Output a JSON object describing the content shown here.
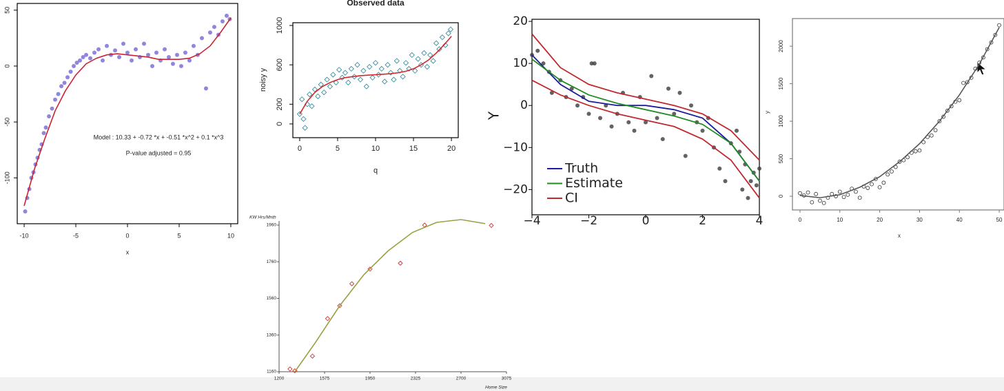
{
  "chart_data": [
    {
      "type": "scatter",
      "xlabel": "x",
      "annotations": [
        "Model :  10.33  +  -0.72 *x + -0.51 *x^2 + 0.1 *x^3",
        "P-value adjusted =  0.95"
      ],
      "xlim": [
        -10.67,
        10.67
      ],
      "ylim": [
        -141,
        56
      ],
      "xticks": [
        -10,
        -5,
        0,
        5,
        10
      ],
      "yticks": [
        -100,
        -50,
        0,
        50
      ],
      "marker": "circle",
      "color": "#7468d2",
      "x": [
        -9.9,
        -9.7,
        -9.5,
        -9.3,
        -9.1,
        -8.9,
        -8.7,
        -8.5,
        -8.3,
        -8.1,
        -7.9,
        -7.6,
        -7.3,
        -7,
        -6.7,
        -6.4,
        -6.1,
        -5.8,
        -5.5,
        -5.2,
        -4.9,
        -4.6,
        -4.3,
        -4,
        -3.6,
        -3.2,
        -2.8,
        -2.4,
        -2,
        -1.6,
        -1.2,
        -0.8,
        -0.4,
        0,
        0.4,
        0.8,
        1.2,
        1.6,
        2,
        2.4,
        2.8,
        3.2,
        3.6,
        4,
        4.4,
        4.8,
        5.2,
        5.6,
        6,
        6.4,
        6.8,
        7.2,
        7.6,
        8,
        8.4,
        8.8,
        9.2,
        9.6,
        9.9
      ],
      "y": [
        -130,
        -118,
        -110,
        -100,
        -95,
        -88,
        -82,
        -75,
        -70,
        -60,
        -55,
        -45,
        -38,
        -30,
        -25,
        -18,
        -15,
        -10,
        -5,
        0,
        3,
        5,
        8,
        10,
        7,
        12,
        15,
        5,
        18,
        10,
        14,
        8,
        20,
        12,
        5,
        15,
        8,
        20,
        10,
        0,
        12,
        5,
        15,
        8,
        2,
        10,
        0,
        12,
        5,
        18,
        10,
        25,
        -20,
        30,
        35,
        28,
        40,
        45,
        42
      ],
      "fit": {
        "color": "#cc2233",
        "x": [
          -10,
          -9,
          -8,
          -7,
          -6,
          -5,
          -4,
          -3,
          -2,
          -1,
          0,
          1,
          2,
          3,
          4,
          5,
          6,
          7,
          8,
          9,
          10
        ],
        "y": [
          -125,
          -92,
          -65,
          -40,
          -22,
          -8,
          2,
          7,
          10,
          11,
          10,
          9,
          8,
          6,
          6,
          6,
          7,
          11,
          18,
          30,
          43
        ]
      }
    },
    {
      "type": "scatter",
      "title": "Observed data",
      "xlabel": "q",
      "ylabel": "noisy y",
      "xlim": [
        -0.9,
        20.9
      ],
      "ylim": [
        -140,
        1028
      ],
      "xticks": [
        0,
        5,
        10,
        15,
        20
      ],
      "yticks": [
        0,
        200,
        600,
        1000
      ],
      "marker": "open-diamond",
      "color": "#3a8fa0",
      "x": [
        0,
        0.3,
        0.5,
        0.7,
        1,
        1.3,
        1.6,
        2,
        2.4,
        2.8,
        3.2,
        3.6,
        4,
        4.4,
        4.8,
        5.2,
        5.6,
        6,
        6.4,
        6.8,
        7.2,
        7.6,
        8,
        8.4,
        8.8,
        9.2,
        9.6,
        10,
        10.4,
        10.8,
        11.2,
        11.6,
        12,
        12.4,
        12.8,
        13.2,
        13.6,
        14,
        14.4,
        14.8,
        15.2,
        15.6,
        16,
        16.4,
        16.8,
        17.2,
        17.6,
        18,
        18.4,
        18.8,
        19.2,
        19.6,
        19.9
      ],
      "y": [
        100,
        250,
        50,
        -40,
        200,
        300,
        180,
        350,
        280,
        400,
        320,
        450,
        380,
        500,
        420,
        550,
        470,
        520,
        420,
        560,
        480,
        600,
        450,
        540,
        380,
        580,
        470,
        620,
        500,
        560,
        430,
        600,
        520,
        450,
        640,
        540,
        480,
        620,
        560,
        700,
        540,
        660,
        600,
        720,
        580,
        700,
        640,
        820,
        760,
        880,
        800,
        920,
        960
      ],
      "fit": {
        "color": "#d4252b",
        "x": [
          0,
          1,
          2,
          3,
          4,
          5,
          6,
          7,
          8,
          9,
          10,
          11,
          12,
          13,
          14,
          15,
          16,
          17,
          18,
          19,
          20
        ],
        "y": [
          100,
          230,
          320,
          380,
          420,
          450,
          470,
          480,
          490,
          495,
          500,
          505,
          510,
          520,
          535,
          560,
          600,
          650,
          720,
          800,
          890
        ]
      }
    },
    {
      "type": "scatter",
      "ylabel": "Y",
      "legend": "lower left",
      "xlim": [
        -4,
        4
      ],
      "ylim": [
        -26,
        20.5
      ],
      "xticks": [
        {
          "value": -4,
          "label": "−4"
        },
        {
          "value": -2,
          "label": "−2"
        },
        0,
        2,
        4
      ],
      "yticks": [
        {
          "value": -20,
          "label": "−20"
        },
        {
          "value": -10,
          "label": "−10"
        },
        0,
        10,
        20
      ],
      "marker": "circle",
      "color": "#3c3c3c",
      "x": [
        -4,
        -3.8,
        -3.6,
        -3.4,
        -3.3,
        -3,
        -2.8,
        -2.6,
        -2.4,
        -2.2,
        -2,
        -1.9,
        -1.8,
        -1.6,
        -1.4,
        -1.2,
        -1,
        -0.8,
        -0.6,
        -0.4,
        -0.2,
        0,
        0.2,
        0.4,
        0.6,
        0.8,
        1,
        1.2,
        1.4,
        1.6,
        1.8,
        2,
        2.2,
        2.4,
        2.6,
        2.8,
        3,
        3.2,
        3.3,
        3.4,
        3.5,
        3.6,
        3.7,
        3.8,
        3.9,
        4
      ],
      "y": [
        12,
        13,
        10,
        8,
        3,
        6,
        2,
        4,
        0,
        2,
        -2,
        10,
        10,
        -3,
        0,
        -5,
        -2,
        3,
        -4,
        -6,
        2,
        -4,
        7,
        -3,
        -8,
        4,
        -2,
        3,
        -12,
        0,
        -4,
        -6,
        -3,
        -10,
        -15,
        -18,
        -9,
        -6,
        -11,
        -20,
        -14,
        -22,
        -18,
        -16,
        -19,
        -15
      ],
      "line_x": [
        -4,
        -3,
        -2,
        -1,
        0,
        1,
        2,
        3,
        4
      ],
      "series": [
        {
          "name": "Truth",
          "color": "#1c1c9c",
          "values": [
            12,
            5,
            1,
            0,
            0,
            -1,
            -3,
            -9,
            -18
          ]
        },
        {
          "name": "Estimate",
          "color": "#228b22",
          "values": [
            11,
            6,
            2.5,
            0.5,
            -1,
            -2.5,
            -4.5,
            -9,
            -18
          ]
        },
        {
          "name": "CI",
          "color": "#c0282d",
          "lower": [
            6,
            2.5,
            0,
            -2,
            -3.5,
            -5,
            -8,
            -13,
            -22
          ],
          "upper": [
            17,
            9,
            5,
            3,
            1.5,
            0,
            -2,
            -6,
            -13
          ]
        }
      ]
    },
    {
      "type": "scatter",
      "xlabel": "x",
      "ylabel": "y",
      "xlim": [
        -1.9,
        51.2
      ],
      "ylim": [
        -183,
        2368
      ],
      "xticks": [
        0,
        10,
        20,
        30,
        40,
        50
      ],
      "yticks": [
        0,
        500,
        1000,
        1500,
        2000
      ],
      "marker": "open-circle",
      "color": "#333333",
      "x": [
        0,
        1,
        2,
        3,
        4,
        5,
        6,
        7,
        8,
        9,
        10,
        11,
        12,
        13,
        14,
        15,
        16,
        17,
        18,
        19,
        20,
        21,
        22,
        23,
        24,
        25,
        26,
        27,
        28,
        29,
        30,
        31,
        32,
        33,
        34,
        35,
        36,
        37,
        38,
        39,
        40,
        41,
        42,
        43,
        44,
        45,
        46,
        47,
        48,
        49,
        50
      ],
      "y": [
        40,
        10,
        50,
        -80,
        30,
        -60,
        -90,
        -20,
        30,
        0,
        60,
        -10,
        20,
        100,
        60,
        -20,
        130,
        110,
        160,
        230,
        120,
        180,
        290,
        330,
        390,
        460,
        480,
        520,
        580,
        600,
        610,
        720,
        790,
        810,
        880,
        1000,
        1060,
        1140,
        1200,
        1260,
        1280,
        1510,
        1520,
        1580,
        1700,
        1780,
        1850,
        1960,
        2050,
        2150,
        2280
      ],
      "fit": {
        "color": "#555555",
        "x": [
          0,
          5,
          10,
          15,
          20,
          25,
          30,
          35,
          40,
          45,
          50
        ],
        "y": [
          10,
          -20,
          20,
          120,
          260,
          460,
          700,
          1000,
          1350,
          1760,
          2250
        ]
      }
    },
    {
      "type": "scatter",
      "xlabel": "Home Size",
      "ylabel": "KW Hrs/Mnth",
      "xlim": [
        1200,
        3075
      ],
      "ylim": [
        1160,
        1960
      ],
      "xticks": [
        1200,
        1575,
        1950,
        2325,
        2700,
        3075
      ],
      "yticks": [
        1160,
        1360,
        1560,
        1760,
        1960
      ],
      "marker": "open-diamond",
      "color": "#d03030",
      "x": [
        1290,
        1330,
        1475,
        1600,
        1700,
        1800,
        1950,
        2200,
        2400,
        2950
      ],
      "y": [
        1175,
        1165,
        1245,
        1450,
        1520,
        1640,
        1720,
        1752,
        1960,
        1958
      ],
      "fit": {
        "color": "#9aa040",
        "x": [
          1330,
          1500,
          1700,
          1900,
          2100,
          2300,
          2500,
          2700,
          2900
        ],
        "y": [
          1160,
          1320,
          1520,
          1690,
          1820,
          1920,
          1975,
          1990,
          1968
        ]
      }
    }
  ]
}
